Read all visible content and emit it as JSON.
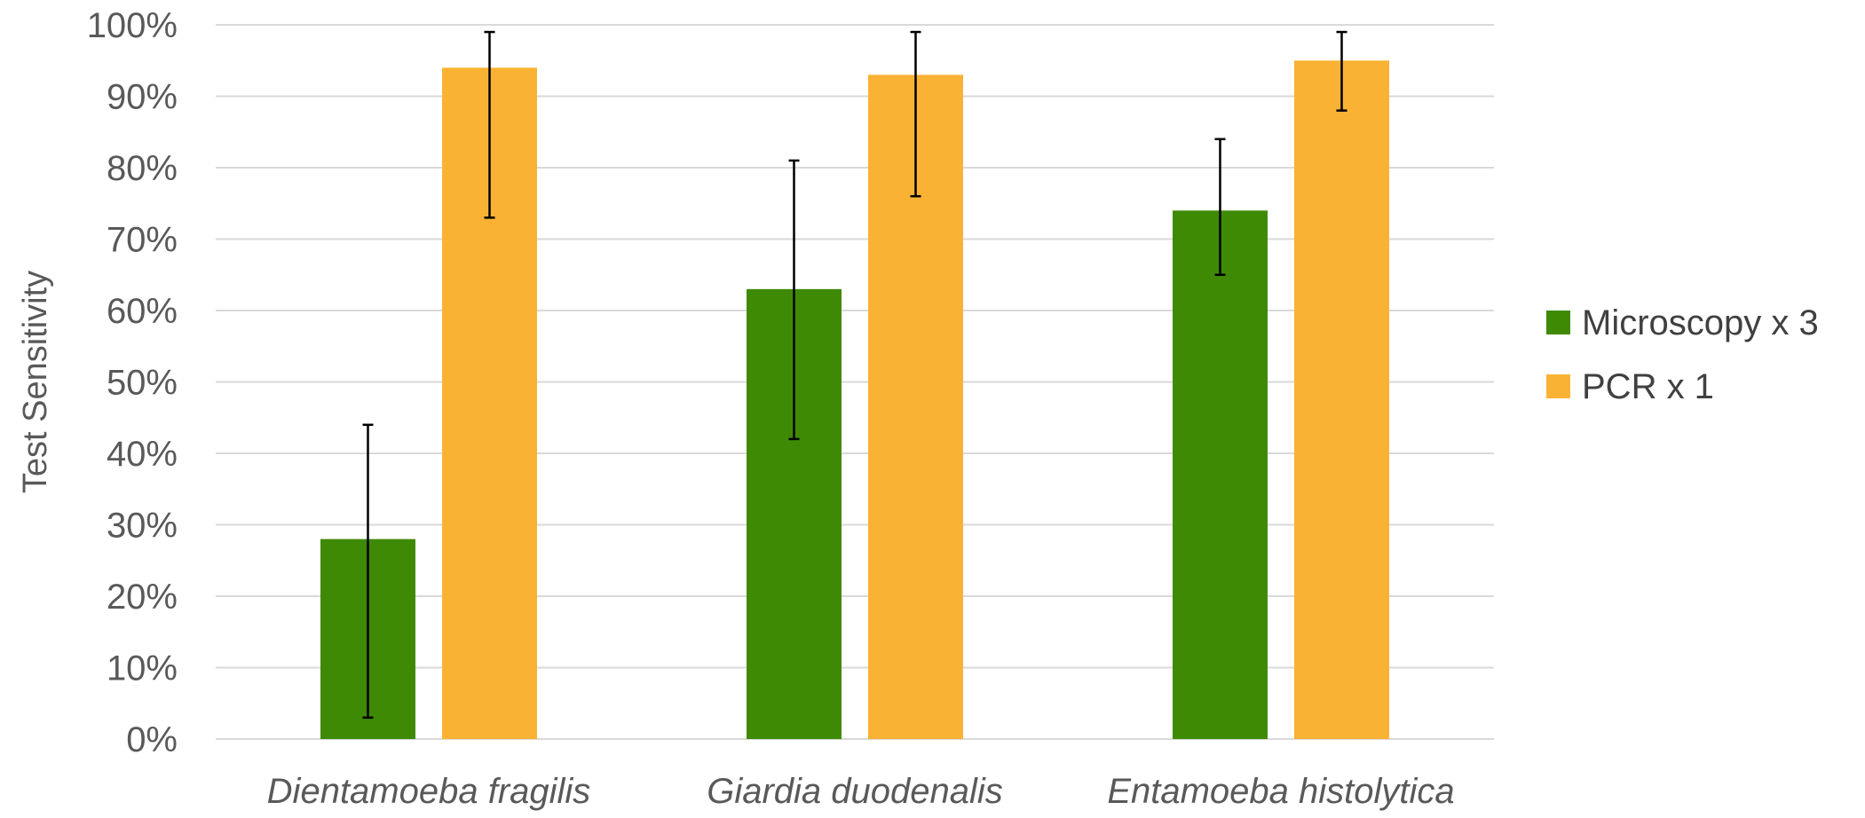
{
  "chart_data": {
    "type": "bar",
    "title": "",
    "xlabel": "",
    "ylabel": "Test Sensitivity",
    "ylim": [
      0,
      100
    ],
    "y_unit": "%",
    "y_ticks": [
      "0%",
      "10%",
      "20%",
      "30%",
      "40%",
      "50%",
      "60%",
      "70%",
      "80%",
      "90%",
      "100%"
    ],
    "grid": true,
    "legend_position": "right",
    "categories": [
      "Dientamoeba fragilis",
      "Giardia duodenalis",
      "Entamoeba histolytica"
    ],
    "series": [
      {
        "name": "Microscopy x 3",
        "color": "#3f8a05",
        "values": [
          28,
          63,
          74
        ],
        "error_low": [
          3,
          42,
          65
        ],
        "error_high": [
          44,
          81,
          84
        ]
      },
      {
        "name": "PCR x 1",
        "color": "#fab234",
        "values": [
          94,
          93,
          95
        ],
        "error_low": [
          73,
          76,
          88
        ],
        "error_high": [
          99,
          99,
          99
        ]
      }
    ]
  }
}
